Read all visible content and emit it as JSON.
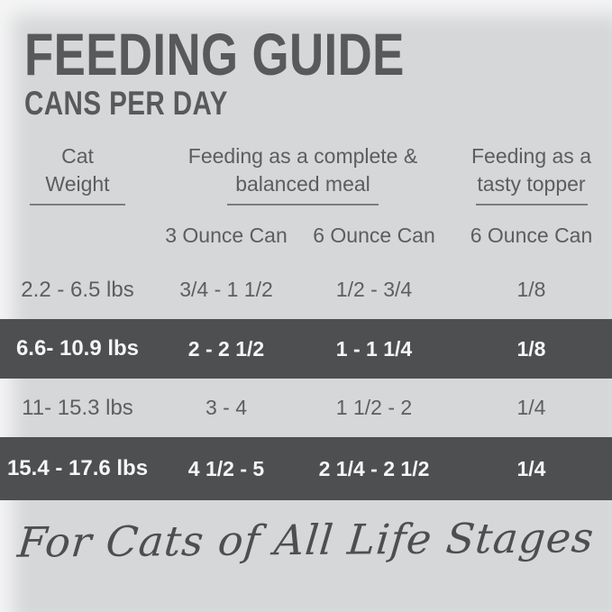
{
  "header": {
    "title": "FEEDING GUIDE",
    "subtitle": "CANS PER DAY"
  },
  "table": {
    "column_groups": [
      {
        "line1": "Cat",
        "line2": "Weight"
      },
      {
        "line1": "Feeding as a complete &",
        "line2": "balanced meal"
      },
      {
        "line1": "Feeding as a",
        "line2": "tasty topper"
      }
    ],
    "sub_headers": [
      "3 Ounce Can",
      "6 Ounce Can",
      "6 Ounce Can"
    ],
    "rows": [
      {
        "weight": "2.2 - 6.5 lbs",
        "three_oz_can": "3/4 - 1 1/2",
        "six_oz_can": "1/2 - 3/4",
        "topper_six_oz_can": "1/8",
        "highlighted": false
      },
      {
        "weight": "6.6- 10.9 lbs",
        "three_oz_can": "2 - 2 1/2",
        "six_oz_can": "1 - 1 1/4",
        "topper_six_oz_can": "1/8",
        "highlighted": true
      },
      {
        "weight": "11- 15.3 lbs",
        "three_oz_can": "3 - 4",
        "six_oz_can": "1 1/2 - 2",
        "topper_six_oz_can": "1/4",
        "highlighted": false
      },
      {
        "weight": "15.4 - 17.6 lbs",
        "three_oz_can": "4 1/2 - 5",
        "six_oz_can": "2 1/4 - 2 1/2",
        "topper_six_oz_can": "1/4",
        "highlighted": true
      }
    ]
  },
  "footer": {
    "tagline": "For Cats of All Life Stages"
  },
  "colors": {
    "page_background": "#d6d7d9",
    "highlight_row_background": "#4e4f51",
    "highlight_row_text": "#f5f5f6",
    "title_text": "#58595b",
    "body_text": "#5d5e60",
    "underline": "#7b7c7e",
    "tagline_text": "#4d4e50"
  }
}
